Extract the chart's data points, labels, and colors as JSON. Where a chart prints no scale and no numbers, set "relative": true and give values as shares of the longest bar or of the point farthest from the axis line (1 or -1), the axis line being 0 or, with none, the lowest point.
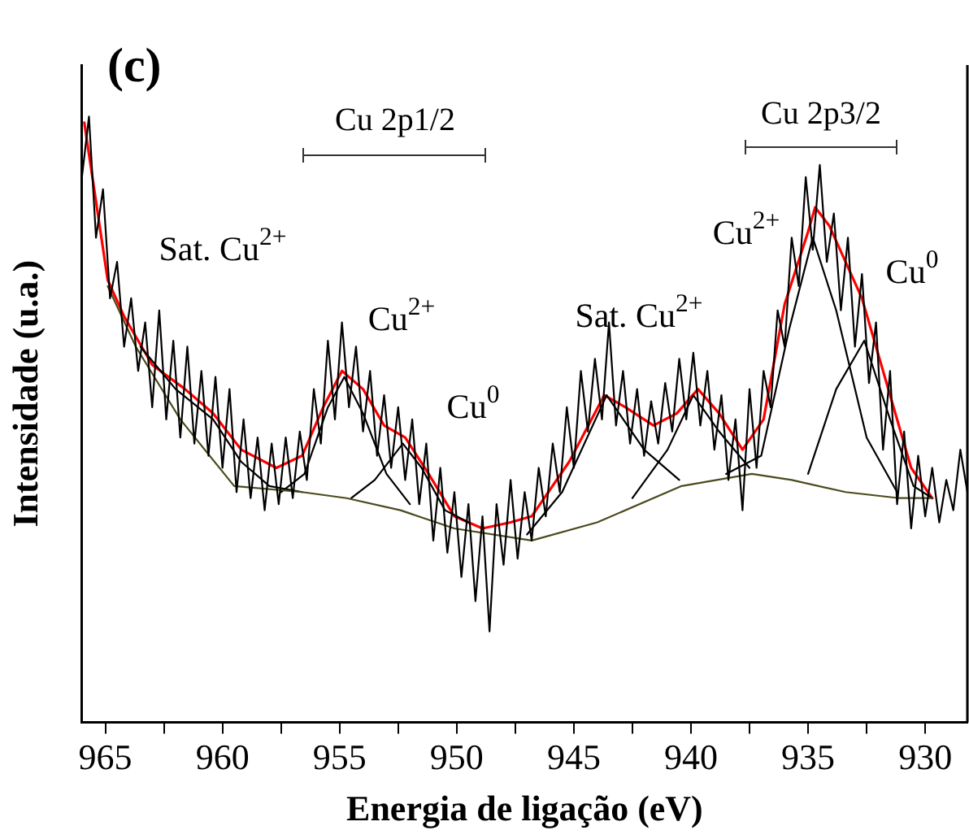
{
  "chart_data": {
    "type": "line",
    "relative": true,
    "xlabel": "Energia de ligação (eV)",
    "ylabel": "Intensidade (u.a.)",
    "xlim": [
      966,
      928.2
    ],
    "xticks": [
      965,
      {
        "value": 962.5,
        "label": null
      },
      960,
      {
        "value": 957.5,
        "label": null
      },
      955,
      {
        "value": 952.5,
        "label": null
      },
      950,
      {
        "value": 947.5,
        "label": null
      },
      945,
      {
        "value": 942.5,
        "label": null
      },
      940,
      {
        "value": 937.5,
        "label": null
      },
      935,
      {
        "value": 932.5,
        "label": null
      },
      930
    ],
    "grid": false,
    "legend": false,
    "marker": "none",
    "line_style": "solid",
    "series": [
      {
        "color": "#000000",
        "x": [
          966.0,
          965.7,
          965.4,
          965.1,
          964.8,
          964.5,
          964.2,
          963.9,
          963.6,
          963.3,
          963.0,
          962.7,
          962.4,
          962.1,
          961.8,
          961.5,
          961.2,
          960.9,
          960.6,
          960.3,
          960.0,
          959.7,
          959.4,
          959.1,
          958.8,
          958.5,
          958.2,
          957.9,
          957.6,
          957.3,
          957.0,
          956.7,
          956.4,
          956.1,
          955.8,
          955.5,
          955.2,
          954.9,
          954.6,
          954.3,
          954.0,
          953.7,
          953.4,
          953.1,
          952.8,
          952.5,
          952.2,
          951.9,
          951.6,
          951.3,
          951.0,
          950.7,
          950.4,
          950.1,
          949.8,
          949.5,
          949.2,
          948.9,
          948.6,
          948.3,
          948.0,
          947.7,
          947.4,
          947.1,
          946.8,
          946.5,
          946.2,
          945.9,
          945.6,
          945.3,
          945.0,
          944.7,
          944.4,
          944.1,
          943.8,
          943.5,
          943.2,
          942.9,
          942.6,
          942.3,
          942.0,
          941.7,
          941.4,
          941.1,
          940.8,
          940.5,
          940.2,
          939.9,
          939.6,
          939.3,
          939.0,
          938.7,
          938.4,
          938.1,
          937.8,
          937.5,
          937.2,
          936.9,
          936.6,
          936.3,
          936.0,
          935.7,
          935.4,
          935.1,
          934.8,
          934.5,
          934.2,
          933.9,
          933.6,
          933.3,
          933.0,
          932.7,
          932.4,
          932.1,
          931.8,
          931.5,
          931.2,
          930.9,
          930.6,
          930.3,
          930.0,
          929.7,
          929.4,
          929.1,
          928.8,
          928.5,
          928.2
        ],
        "values": [
          0.9,
          1.0,
          0.8,
          0.88,
          0.7,
          0.76,
          0.62,
          0.7,
          0.58,
          0.66,
          0.52,
          0.68,
          0.5,
          0.63,
          0.47,
          0.62,
          0.46,
          0.58,
          0.44,
          0.57,
          0.42,
          0.55,
          0.38,
          0.5,
          0.37,
          0.47,
          0.35,
          0.46,
          0.36,
          0.47,
          0.37,
          0.48,
          0.4,
          0.55,
          0.46,
          0.63,
          0.5,
          0.66,
          0.52,
          0.62,
          0.48,
          0.58,
          0.44,
          0.54,
          0.42,
          0.52,
          0.4,
          0.5,
          0.36,
          0.46,
          0.3,
          0.42,
          0.28,
          0.38,
          0.24,
          0.36,
          0.2,
          0.34,
          0.15,
          0.36,
          0.26,
          0.4,
          0.27,
          0.38,
          0.3,
          0.42,
          0.34,
          0.46,
          0.38,
          0.52,
          0.42,
          0.58,
          0.48,
          0.6,
          0.5,
          0.66,
          0.49,
          0.58,
          0.46,
          0.55,
          0.44,
          0.53,
          0.46,
          0.56,
          0.48,
          0.6,
          0.5,
          0.61,
          0.49,
          0.58,
          0.45,
          0.54,
          0.4,
          0.5,
          0.35,
          0.55,
          0.42,
          0.58,
          0.52,
          0.68,
          0.62,
          0.8,
          0.72,
          0.9,
          0.78,
          0.92,
          0.76,
          0.84,
          0.68,
          0.8,
          0.62,
          0.74,
          0.56,
          0.66,
          0.45,
          0.58,
          0.36,
          0.48,
          0.32,
          0.44,
          0.34,
          0.42,
          0.33,
          0.4,
          0.35,
          0.45,
          0.38
        ]
      },
      {
        "color": "#4b4a1c",
        "x": [
          964.9,
          963.7,
          961.8,
          959.5,
          956.6,
          954.7,
          952.4,
          950.1,
          946.8,
          944.0,
          940.4,
          937.4,
          935.7,
          933.4,
          931.1,
          929.7
        ],
        "values": [
          0.72,
          0.62,
          0.5,
          0.39,
          0.38,
          0.37,
          0.35,
          0.32,
          0.3,
          0.33,
          0.39,
          0.41,
          0.4,
          0.38,
          0.37,
          0.37
        ]
      },
      {
        "color": "#000000",
        "x": [
          963.5,
          962.0,
          960.4,
          959.2,
          958.0,
          956.6
        ],
        "values": [
          0.62,
          0.55,
          0.5,
          0.43,
          0.39,
          0.38
        ]
      },
      {
        "color": "#000000",
        "x": [
          957.5,
          956.5,
          955.5,
          954.8,
          954.0,
          953.0,
          952.0
        ],
        "values": [
          0.38,
          0.41,
          0.52,
          0.57,
          0.51,
          0.41,
          0.36
        ]
      },
      {
        "color": "#000000",
        "x": [
          954.5,
          953.5,
          952.3,
          951.5,
          950.5,
          949.5
        ],
        "values": [
          0.37,
          0.4,
          0.46,
          0.42,
          0.35,
          0.33
        ]
      },
      {
        "color": "#000000",
        "x": [
          947.0,
          945.5,
          943.6,
          942.0,
          940.5
        ],
        "values": [
          0.31,
          0.38,
          0.54,
          0.45,
          0.4
        ]
      },
      {
        "color": "#000000",
        "x": [
          942.5,
          941.0,
          939.9,
          938.8,
          937.5
        ],
        "values": [
          0.37,
          0.45,
          0.54,
          0.48,
          0.42
        ]
      },
      {
        "color": "#000000",
        "x": [
          938.5,
          937.0,
          935.8,
          934.8,
          933.8,
          932.5,
          931.2
        ],
        "values": [
          0.41,
          0.44,
          0.65,
          0.8,
          0.68,
          0.47,
          0.38
        ]
      },
      {
        "color": "#000000",
        "x": [
          935.0,
          933.8,
          932.6,
          931.5,
          930.5,
          929.7
        ],
        "values": [
          0.41,
          0.55,
          0.63,
          0.5,
          0.39,
          0.37
        ]
      },
      {
        "color": "#ff0000",
        "x": [
          965.9,
          964.9,
          964.2,
          963.0,
          961.6,
          960.4,
          959.2,
          957.7,
          956.6,
          955.7,
          954.9,
          954.0,
          953.1,
          952.2,
          951.2,
          950.1,
          948.9,
          947.7,
          946.8,
          945.2,
          943.7,
          942.8,
          941.6,
          940.6,
          939.7,
          938.8,
          937.8,
          936.9,
          936.0,
          935.0,
          934.7,
          934.1,
          933.4,
          932.7,
          931.5,
          930.6,
          929.7
        ],
        "values": [
          0.99,
          0.73,
          0.67,
          0.59,
          0.55,
          0.51,
          0.45,
          0.42,
          0.44,
          0.52,
          0.58,
          0.55,
          0.49,
          0.47,
          0.41,
          0.34,
          0.32,
          0.33,
          0.34,
          0.43,
          0.54,
          0.52,
          0.49,
          0.51,
          0.55,
          0.51,
          0.45,
          0.5,
          0.69,
          0.81,
          0.85,
          0.82,
          0.76,
          0.7,
          0.54,
          0.42,
          0.37
        ]
      }
    ],
    "annotations": [
      "(c)",
      "Cu 2p1/2",
      "Cu 2p3/2",
      "Sat. Cu$^{2+}$",
      "Cu$^{2+}$",
      "Cu$^{0}$",
      "Sat. Cu$^{2+}$",
      "Cu$^{2+}$",
      "Cu$^{0}$"
    ]
  }
}
